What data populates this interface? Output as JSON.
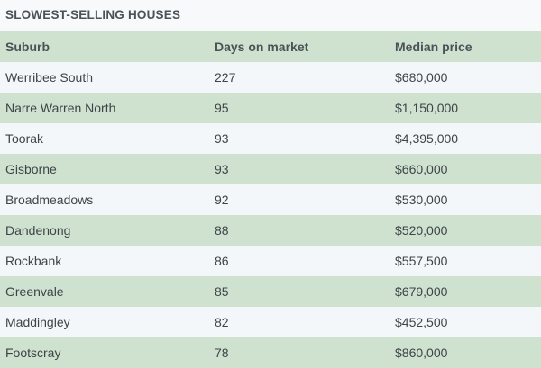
{
  "title": "SLOWEST-SELLING HOUSES",
  "columns": [
    "Suburb",
    "Days on market",
    "Median price"
  ],
  "rows": [
    {
      "suburb": "Werribee South",
      "days": "227",
      "price": "$680,000"
    },
    {
      "suburb": "Narre Warren North",
      "days": "95",
      "price": "$1,150,000"
    },
    {
      "suburb": "Toorak",
      "days": "93",
      "price": "$4,395,000"
    },
    {
      "suburb": "Gisborne",
      "days": "93",
      "price": "$660,000"
    },
    {
      "suburb": "Broadmeadows",
      "days": "92",
      "price": "$530,000"
    },
    {
      "suburb": "Dandenong",
      "days": "88",
      "price": "$520,000"
    },
    {
      "suburb": "Rockbank",
      "days": "86",
      "price": "$557,500"
    },
    {
      "suburb": "Greenvale",
      "days": "85",
      "price": "$679,000"
    },
    {
      "suburb": "Maddingley",
      "days": "82",
      "price": "$452,500"
    },
    {
      "suburb": "Footscray",
      "days": "78",
      "price": "$860,000"
    }
  ],
  "colors": {
    "header_bg": "#cfe2cf",
    "shaded_row_bg": "#cfe2cf",
    "plain_row_bg": "#f4f7f9",
    "page_bg": "#f7f9fa"
  }
}
